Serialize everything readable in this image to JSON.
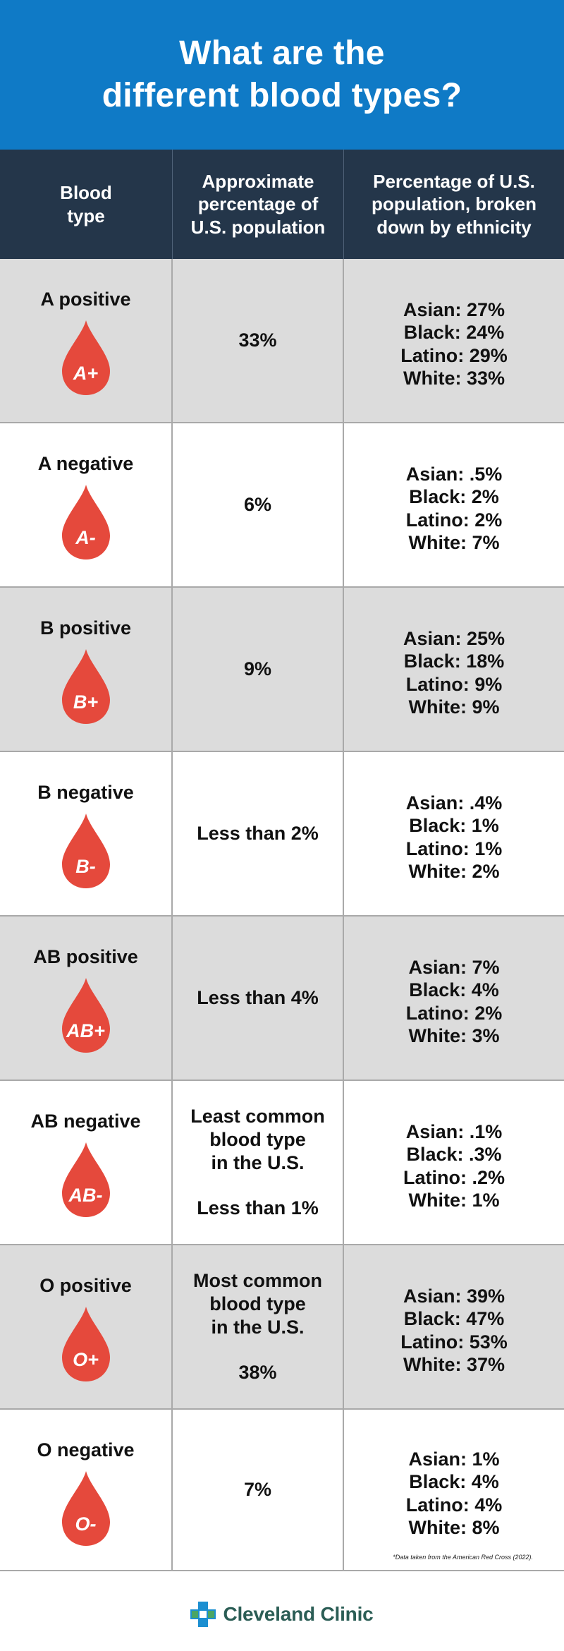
{
  "title": {
    "line1": "What are the",
    "line2": "different blood types?"
  },
  "header": {
    "col1": [
      "Blood",
      "type"
    ],
    "col2": [
      "Approximate",
      "percentage of",
      "U.S. population"
    ],
    "col3": [
      "Percentage of U.S.",
      "population, broken",
      "down by ethnicity"
    ]
  },
  "rows": [
    {
      "type": "A positive",
      "symbol": "A+",
      "pct": [
        "33%"
      ],
      "pct_note": [],
      "ethnicity": [
        "Asian: 27%",
        "Black: 24%",
        "Latino: 29%",
        "White: 33%"
      ]
    },
    {
      "type": "A negative",
      "symbol": "A-",
      "pct": [
        "6%"
      ],
      "pct_note": [],
      "ethnicity": [
        "Asian: .5%",
        "Black: 2%",
        "Latino: 2%",
        "White: 7%"
      ]
    },
    {
      "type": "B positive",
      "symbol": "B+",
      "pct": [
        "9%"
      ],
      "pct_note": [],
      "ethnicity": [
        "Asian: 25%",
        "Black: 18%",
        "Latino: 9%",
        "White: 9%"
      ]
    },
    {
      "type": "B negative",
      "symbol": "B-",
      "pct": [
        "Less than 2%"
      ],
      "pct_note": [],
      "ethnicity": [
        "Asian: .4%",
        "Black: 1%",
        "Latino: 1%",
        "White: 2%"
      ]
    },
    {
      "type": "AB positive",
      "symbol": "AB+",
      "pct": [
        "Less than 4%"
      ],
      "pct_note": [],
      "ethnicity": [
        "Asian: 7%",
        "Black: 4%",
        "Latino: 2%",
        "White: 3%"
      ]
    },
    {
      "type": "AB negative",
      "symbol": "AB-",
      "pct_note": [
        "Least common",
        "blood type",
        "in the U.S."
      ],
      "pct": [
        "Less than 1%"
      ],
      "ethnicity": [
        "Asian: .1%",
        "Black: .3%",
        "Latino: .2%",
        "White: 1%"
      ]
    },
    {
      "type": "O positive",
      "symbol": "O+",
      "pct_note": [
        "Most common",
        "blood type",
        "in the U.S."
      ],
      "pct": [
        "38%"
      ],
      "ethnicity": [
        "Asian: 39%",
        "Black: 47%",
        "Latino: 53%",
        "White: 37%"
      ]
    },
    {
      "type": "O negative",
      "symbol": "O-",
      "pct": [
        "7%"
      ],
      "pct_note": [],
      "ethnicity": [
        "Asian: 1%",
        "Black: 4%",
        "Latino: 4%",
        "White: 8%"
      ]
    }
  ],
  "footnote": "*Data taken from the American Red Cross (2022).",
  "brand": "Cleveland Clinic",
  "colors": {
    "banner": "#0f7ac6",
    "header_bg": "#24364a",
    "row_shade": "#dcdcdc",
    "drop": "#e5493c",
    "logo_blue": "#1c8fd1",
    "logo_green": "#4aa564"
  }
}
